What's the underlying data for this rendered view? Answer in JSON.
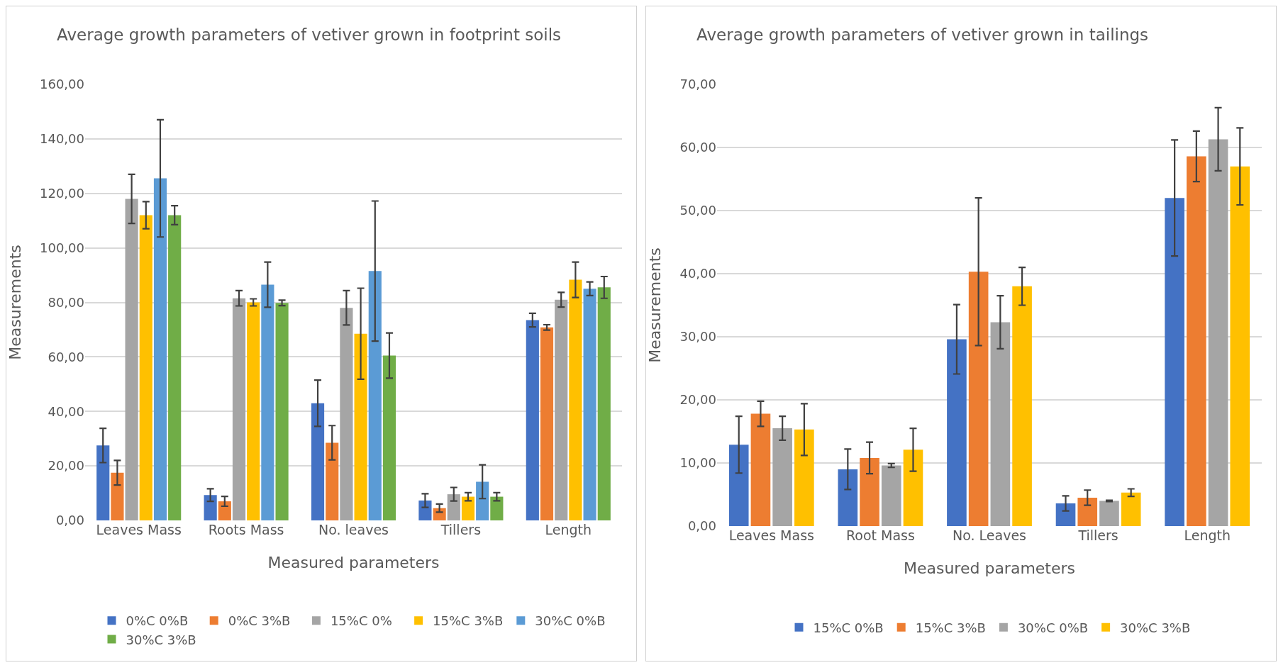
{
  "chart_data": [
    {
      "type": "bar",
      "title": "Average growth parameters of vetiver grown in footprint soils",
      "xlabel": "Measured parameters",
      "ylabel": "Measurements",
      "categories": [
        "Leaves Mass",
        "Roots Mass",
        "No. leaves",
        "Tillers",
        "Length"
      ],
      "series": [
        {
          "name": "0%C 0%B",
          "color": "#4472c4",
          "values": [
            27.5,
            9.3,
            43,
            7.3,
            73.5
          ],
          "errors": [
            6.3,
            2.3,
            8.5,
            2.5,
            2.5
          ]
        },
        {
          "name": "0%C 3%B",
          "color": "#ed7d31",
          "values": [
            17.5,
            7,
            28.5,
            4.5,
            70.8
          ],
          "errors": [
            4.5,
            1.8,
            6.3,
            1.5,
            1
          ]
        },
        {
          "name": "15%C 0%",
          "color": "#a5a5a5",
          "values": [
            118,
            81.5,
            78,
            9.6,
            81
          ],
          "errors": [
            9,
            2.8,
            6.3,
            2.5,
            2.7
          ]
        },
        {
          "name": "15%C 3%B",
          "color": "#ffc000",
          "values": [
            112,
            80,
            68.5,
            8.7,
            88.3
          ],
          "errors": [
            5,
            1.3,
            16.7,
            1.5,
            6.5
          ]
        },
        {
          "name": "30%C 0%B",
          "color": "#5b9bd5",
          "values": [
            125.5,
            86.5,
            91.5,
            14.2,
            85
          ],
          "errors": [
            21.5,
            8.3,
            25.7,
            6.2,
            2.5
          ]
        },
        {
          "name": "30%C 3%B",
          "color": "#70ad47",
          "values": [
            112,
            79.8,
            60.5,
            8.7,
            85.5
          ],
          "errors": [
            3.5,
            1,
            8.3,
            1.5,
            4
          ]
        }
      ],
      "ylim": [
        0,
        160
      ],
      "yticks": [
        {
          "value": 0,
          "label": "0,00"
        },
        {
          "value": 20,
          "label": "20,00"
        },
        {
          "value": 40,
          "label": "40,00"
        },
        {
          "value": 60,
          "label": "60,00"
        },
        {
          "value": 80,
          "label": "80,00"
        },
        {
          "value": 100,
          "label": "100,00"
        },
        {
          "value": 120,
          "label": "120,00"
        },
        {
          "value": 140,
          "label": "140,00"
        },
        {
          "value": 160,
          "label": "160,00"
        }
      ],
      "grid": "y",
      "legend": "bottom"
    },
    {
      "type": "bar",
      "title": "Average growth parameters of vetiver grown in tailings",
      "xlabel": "Measured parameters",
      "ylabel": "Measurements",
      "categories": [
        "Leaves Mass",
        "Root Mass",
        "No. Leaves",
        "Tillers",
        "Length"
      ],
      "series": [
        {
          "name": "15%C 0%B",
          "color": "#4472c4",
          "values": [
            12.9,
            9,
            29.6,
            3.6,
            52
          ],
          "errors": [
            4.5,
            3.2,
            5.5,
            1.2,
            9.2
          ]
        },
        {
          "name": "15%C 3%B",
          "color": "#ed7d31",
          "values": [
            17.8,
            10.8,
            40.3,
            4.5,
            58.6
          ],
          "errors": [
            2,
            2.5,
            11.7,
            1.2,
            4
          ]
        },
        {
          "name": "30%C 0%B",
          "color": "#a5a5a5",
          "values": [
            15.5,
            9.6,
            32.3,
            4,
            61.3
          ],
          "errors": [
            1.9,
            0.3,
            4.2,
            0.1,
            5
          ]
        },
        {
          "name": "30%C 3%B",
          "color": "#ffc000",
          "values": [
            15.3,
            12.1,
            38,
            5.3,
            57
          ],
          "errors": [
            4.1,
            3.4,
            3,
            0.6,
            6.1
          ]
        }
      ],
      "ylim": [
        0,
        70
      ],
      "yticks": [
        {
          "value": 0,
          "label": "0,00"
        },
        {
          "value": 10,
          "label": "10,00"
        },
        {
          "value": 20,
          "label": "20,00"
        },
        {
          "value": 30,
          "label": "30,00"
        },
        {
          "value": 40,
          "label": "40,00"
        },
        {
          "value": 50,
          "label": "50,00"
        },
        {
          "value": 60,
          "label": "60,00"
        },
        {
          "value": 70,
          "label": "70,00"
        }
      ],
      "grid": "y",
      "legend": "bottom"
    }
  ]
}
